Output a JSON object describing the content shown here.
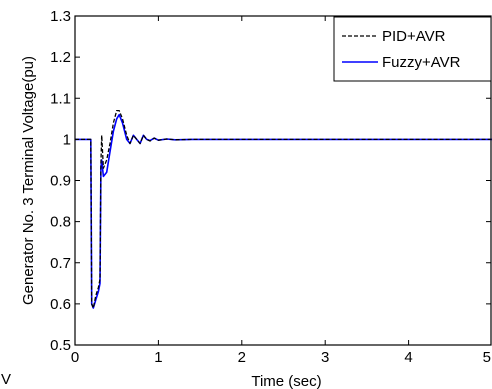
{
  "chart_data": {
    "type": "line",
    "xlabel": "Time (sec)",
    "ylabel": "Generator No. 3 Terminal Voltage(pu)",
    "xlim": [
      0,
      5
    ],
    "ylim": [
      0.5,
      1.3
    ],
    "xticks": [
      "0",
      "1",
      "2",
      "3",
      "4",
      "5"
    ],
    "yticks": [
      "0.5",
      "0.6",
      "0.7",
      "0.8",
      "0.9",
      "1",
      "1.1",
      "1.2",
      "1.3"
    ],
    "grid": false,
    "legend_position": "top-right",
    "stray_text": "V",
    "series": [
      {
        "name": "PID+AVR",
        "color": "#000000",
        "dash": "dashed",
        "x": [
          0,
          0.19,
          0.2,
          0.22,
          0.25,
          0.28,
          0.3,
          0.31,
          0.32,
          0.34,
          0.38,
          0.42,
          0.46,
          0.5,
          0.53,
          0.57,
          0.62,
          0.66,
          0.7,
          0.74,
          0.78,
          0.82,
          0.86,
          0.9,
          0.95,
          1.0,
          1.1,
          1.2,
          1.4,
          1.6,
          2.0,
          3.0,
          4.0,
          5.0
        ],
        "y": [
          1.0,
          1.0,
          0.6,
          0.59,
          0.62,
          0.64,
          0.66,
          0.94,
          1.01,
          0.93,
          0.95,
          0.99,
          1.04,
          1.07,
          1.07,
          1.05,
          1.01,
          0.99,
          1.01,
          1.0,
          0.99,
          1.01,
          1.0,
          0.996,
          1.003,
          0.998,
          1.001,
          0.999,
          1.0,
          1.0,
          1.0,
          1.0,
          1.0,
          1.0
        ]
      },
      {
        "name": "Fuzzy+AVR",
        "color": "#0000ff",
        "dash": "solid",
        "x": [
          0,
          0.19,
          0.2,
          0.22,
          0.25,
          0.28,
          0.3,
          0.31,
          0.32,
          0.34,
          0.38,
          0.42,
          0.46,
          0.5,
          0.53,
          0.57,
          0.62,
          0.66,
          0.7,
          0.74,
          0.78,
          0.82,
          0.86,
          0.9,
          0.95,
          1.0,
          1.1,
          1.2,
          1.4,
          1.6,
          2.0,
          3.0,
          4.0,
          5.0
        ],
        "y": [
          1.0,
          1.0,
          0.6,
          0.59,
          0.61,
          0.63,
          0.65,
          0.93,
          0.95,
          0.91,
          0.92,
          0.97,
          1.02,
          1.05,
          1.06,
          1.04,
          1.0,
          0.99,
          1.01,
          1.0,
          0.99,
          1.01,
          1.0,
          0.997,
          1.003,
          0.998,
          1.001,
          0.999,
          1.0,
          1.0,
          1.0,
          1.0,
          1.0,
          1.0
        ]
      }
    ]
  }
}
